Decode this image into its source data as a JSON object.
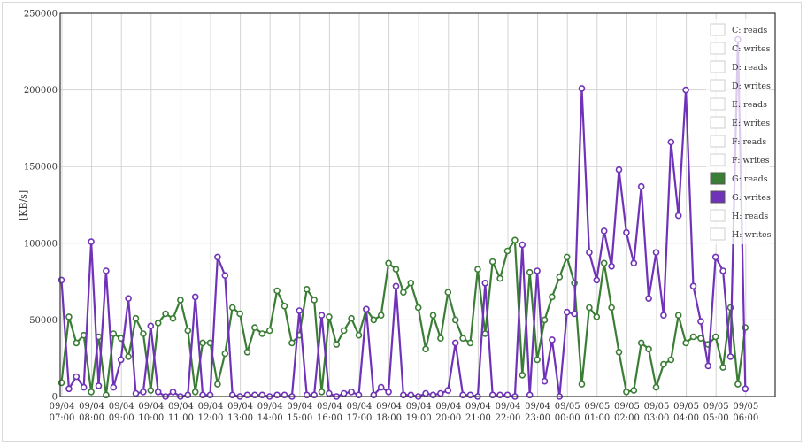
{
  "chart_data": {
    "type": "line",
    "ylabel": "[KB/s]",
    "ylim": [
      0,
      250000
    ],
    "yticks": [
      "0",
      "50000",
      "100000",
      "150000",
      "200000",
      "250000"
    ],
    "xticks": [
      [
        "09/04",
        "07:00"
      ],
      [
        "09/04",
        "08:00"
      ],
      [
        "09/04",
        "09:00"
      ],
      [
        "09/04",
        "10:00"
      ],
      [
        "09/04",
        "11:00"
      ],
      [
        "09/04",
        "12:00"
      ],
      [
        "09/04",
        "13:00"
      ],
      [
        "09/04",
        "14:00"
      ],
      [
        "09/04",
        "15:00"
      ],
      [
        "09/04",
        "16:00"
      ],
      [
        "09/04",
        "17:00"
      ],
      [
        "09/04",
        "18:00"
      ],
      [
        "09/04",
        "19:00"
      ],
      [
        "09/04",
        "20:00"
      ],
      [
        "09/04",
        "21:00"
      ],
      [
        "09/04",
        "22:00"
      ],
      [
        "09/04",
        "23:00"
      ],
      [
        "09/05",
        "00:00"
      ],
      [
        "09/05",
        "01:00"
      ],
      [
        "09/05",
        "02:00"
      ],
      [
        "09/05",
        "03:00"
      ],
      [
        "09/05",
        "04:00"
      ],
      [
        "09/05",
        "05:00"
      ],
      [
        "09/05",
        "06:00"
      ]
    ],
    "points_per_hour": 4,
    "grid": true,
    "legend_position": "top-right",
    "legend": [
      {
        "label": "C: reads",
        "color": "",
        "active": false
      },
      {
        "label": "C: writes",
        "color": "",
        "active": false
      },
      {
        "label": "D: reads",
        "color": "",
        "active": false
      },
      {
        "label": "D: writes",
        "color": "",
        "active": false
      },
      {
        "label": "E: reads",
        "color": "",
        "active": false
      },
      {
        "label": "E: writes",
        "color": "",
        "active": false
      },
      {
        "label": "F: reads",
        "color": "",
        "active": false
      },
      {
        "label": "F: writes",
        "color": "",
        "active": false
      },
      {
        "label": "G: reads",
        "color": "#3a7d34",
        "active": true
      },
      {
        "label": "G: writes",
        "color": "#6f32b8",
        "active": true
      },
      {
        "label": "H: reads",
        "color": "",
        "active": false
      },
      {
        "label": "H: writes",
        "color": "",
        "active": false
      }
    ],
    "series": [
      {
        "name": "G: reads",
        "color": "#3a7d34",
        "values": [
          9000,
          52000,
          35000,
          40000,
          3000,
          39000,
          1000,
          41000,
          38000,
          26000,
          51000,
          41000,
          4000,
          48000,
          54000,
          51000,
          63000,
          43000,
          3000,
          35000,
          35000,
          8000,
          28000,
          58000,
          54000,
          29000,
          45000,
          41000,
          43000,
          69000,
          59000,
          35000,
          40000,
          70000,
          63000,
          3000,
          52000,
          34000,
          43000,
          51000,
          40000,
          57000,
          50000,
          53000,
          87000,
          83000,
          68000,
          74000,
          58000,
          31000,
          53000,
          38000,
          68000,
          50000,
          38000,
          35000,
          83000,
          41000,
          88000,
          77000,
          95000,
          102000,
          14000,
          81000,
          24000,
          50000,
          65000,
          78000,
          91000,
          74000,
          8000,
          58000,
          52000,
          87000,
          58000,
          29000,
          3000,
          4000,
          35000,
          31000,
          6000,
          21000,
          24000,
          53000,
          35000,
          39000,
          38000,
          34000,
          39000,
          19000,
          58000,
          8000,
          45000
        ]
      },
      {
        "name": "G: writes",
        "color": "#6f32b8",
        "values": [
          76000,
          5000,
          13000,
          6000,
          101000,
          7000,
          82000,
          6000,
          24000,
          64000,
          2000,
          3000,
          46000,
          3000,
          0,
          3000,
          0,
          1000,
          65000,
          1000,
          1000,
          91000,
          79000,
          1000,
          0,
          1000,
          1000,
          1000,
          0,
          1000,
          1000,
          0,
          56000,
          1000,
          1000,
          53000,
          2000,
          0,
          2000,
          3000,
          1000,
          57000,
          1000,
          6000,
          3000,
          72000,
          1000,
          1000,
          0,
          2000,
          1000,
          2000,
          4000,
          35000,
          1000,
          1000,
          0,
          74000,
          1000,
          1000,
          1000,
          0,
          99000,
          1000,
          82000,
          10000,
          37000,
          0,
          55000,
          54000,
          201000,
          94000,
          76000,
          108000,
          85000,
          148000,
          107000,
          87000,
          137000,
          64000,
          94000,
          53000,
          166000,
          118000,
          200000,
          72000,
          49000,
          20000,
          91000,
          82000,
          26000,
          233000,
          5000
        ]
      }
    ]
  }
}
